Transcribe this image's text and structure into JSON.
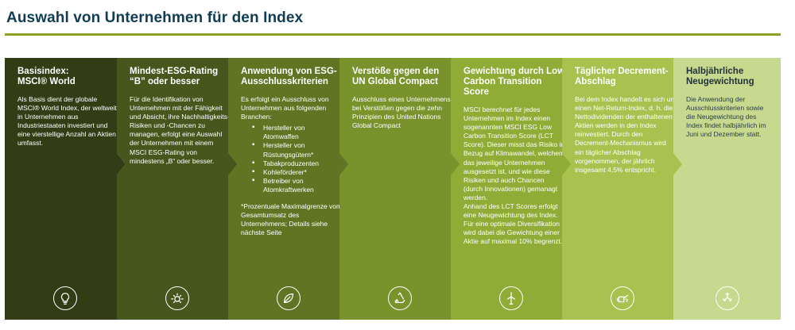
{
  "page": {
    "title": "Auswahl von Unternehmen für den Index",
    "accent_color": "#8aa325"
  },
  "steps": [
    {
      "title": "Basisindex:\nMSCI® World",
      "text": "Als Basis dient der globale MSCI® World Index, der weltweit in Unternehmen aus Industriestaaten investiert und eine vierstellige Anzahl an Aktien umfasst.",
      "icon": "lightbulb-icon",
      "color": "#323d16"
    },
    {
      "title": "Mindest-ESG-Rating\n“B” oder besser",
      "text": "Für die Identifikation von Unternehmen mit der Fähigkeit und Absicht, ihre Nachhaltigkeits-Risiken und -Chancen zu managen, erfolgt eine Auswahl der Unternehmen mit einem MSCI ESG-Rating von mindestens „B“ oder besser.",
      "icon": "sun-icon",
      "color": "#46561d"
    },
    {
      "title": "Anwendung von ESG-\nAusschlusskriterien",
      "intro": "Es erfolgt ein Ausschluss von Unternehmen aus folgenden Branchen:",
      "bullets": [
        "Hersteller von\nAtomwaffen",
        "Hersteller von\nRüstungsgütern*",
        "Tabakproduzenten",
        "Kohleförderer*",
        "Betreiber von\nAtomkraftwerken"
      ],
      "note": "*Prozentuale Maximalgrenze vom Gesamtumsatz des Unternehmens; Details siehe nächste Seite",
      "icon": "leaf-icon",
      "color": "#5f7523"
    },
    {
      "title": "Verstöße gegen den\nUN Global Compact",
      "text": "Ausschluss eines Unternehmens bei Verstößen gegen die zehn Prinzipien des United Nations Global Compact",
      "icon": "recycle-icon",
      "color": "#78922c"
    },
    {
      "title": "Gewichtung durch Low\nCarbon Transition Score",
      "text": "MSCI berechnet für jedes Unternehmen im Index einen sogenannten MSCI ESG Low Carbon Transition Score (LCT Score). Dieser misst das Risiko in Bezug auf Klimawandel, welchem das jeweilige Unternehmen ausgesetzt ist, und wie diese Risiken und auch Chancen (durch Innovationen) gemanagt werden.\nAnhand des LCT Scores erfolgt eine Neugewichtung des Index. Für eine optimale Diversifikation wird dabei die Gewichtung einer Aktie auf maximal 10% begrenzt.",
      "icon": "wind-turbine-icon",
      "color": "#8fac36"
    },
    {
      "title": "Täglicher Decrement-\nAbschlag",
      "text": "Bei dem Index handelt es sich um einen Net-Return-Index, d. h. die Nettodividenden der enthaltenen Aktien werden in den Index reinvestiert. Durch den Decrement-Mechanismus wird ein täglicher Abschlag vorgenommen, der jährlich insgesamt 4,5% entspricht.",
      "icon": "watering-can-icon",
      "color": "#a8c250"
    },
    {
      "title": "Halbjährliche\nNeugewichtung",
      "text": "Die Anwendung der Ausschlusskriterien sowie die Neugewichtung des Index findet halbjährlich im Juni und Dezember statt.",
      "icon": "cycle-arrows-icon",
      "color": "#c6d98e"
    }
  ]
}
